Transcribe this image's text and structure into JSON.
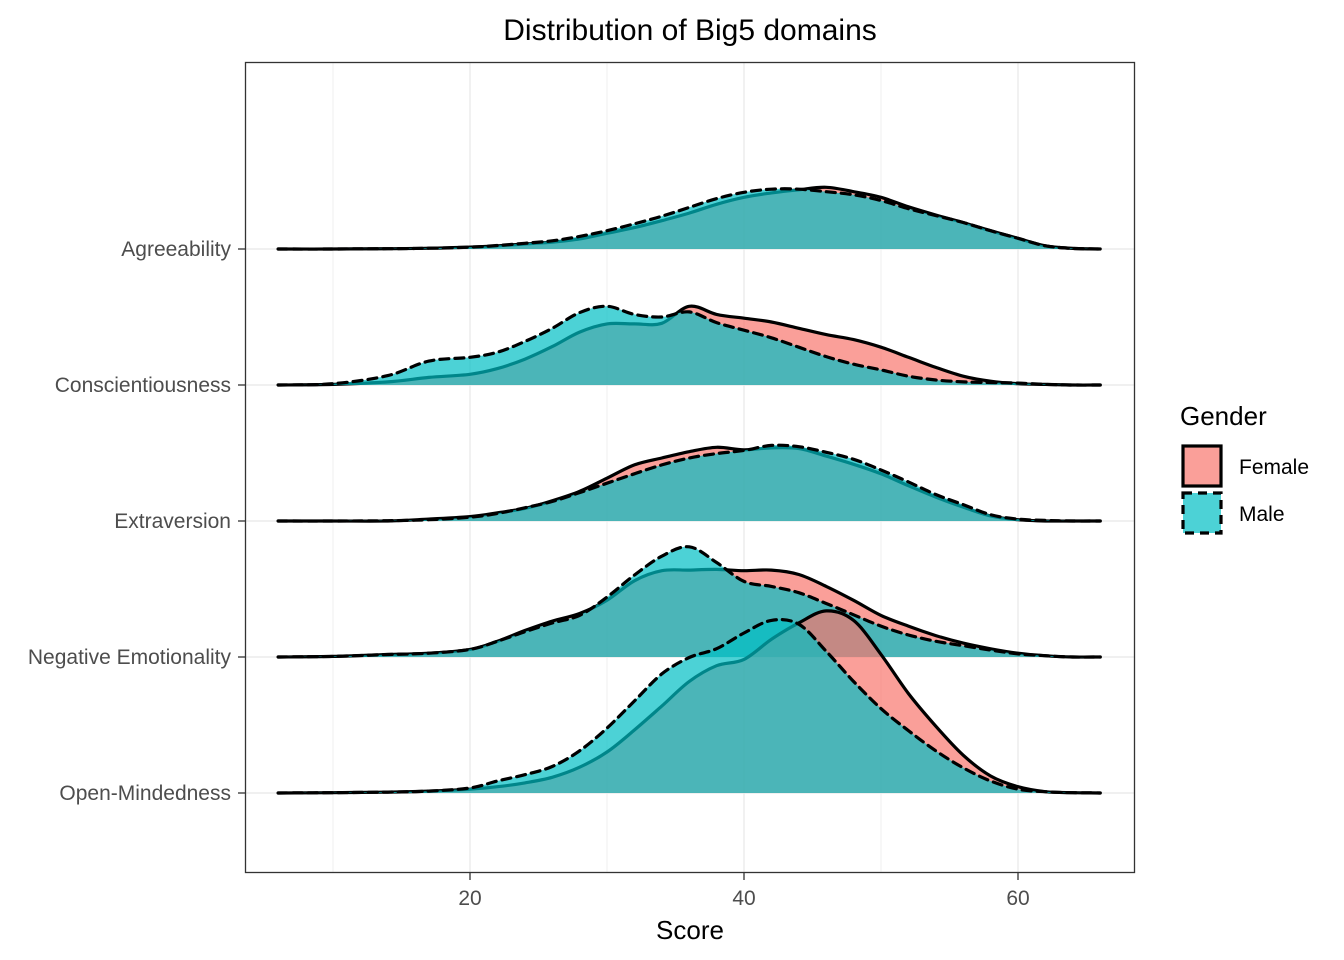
{
  "chart_data": {
    "type": "area",
    "subtype": "ridgeline-density",
    "title": "Distribution of Big5 domains",
    "xlabel": "Score",
    "ylabel": "",
    "xlim": [
      3,
      68
    ],
    "x_ticks": [
      20,
      40,
      60
    ],
    "grid": true,
    "categories": [
      "Agreeability",
      "Conscientiousness",
      "Extraversion",
      "Negative Emotionality",
      "Open-Mindedness"
    ],
    "legend": {
      "title": "Gender",
      "position": "right",
      "entries": [
        {
          "label": "Female",
          "fill": "#F8766D",
          "line": "solid"
        },
        {
          "label": "Male",
          "fill": "#00BFC4",
          "line": "dashed"
        }
      ]
    },
    "colors": {
      "Female": "#F8766D",
      "Male": "#00BFC4"
    },
    "x": [
      6,
      10,
      14,
      17,
      20,
      22,
      24,
      26,
      28,
      30,
      32,
      34,
      36,
      38,
      40,
      42,
      44,
      46,
      48,
      50,
      52,
      54,
      56,
      58,
      60,
      62,
      64,
      66
    ],
    "series": [
      {
        "category": "Agreeability",
        "name": "Female",
        "values": [
          0,
          0,
          0.005,
          0.012,
          0.03,
          0.05,
          0.08,
          0.11,
          0.16,
          0.25,
          0.34,
          0.45,
          0.57,
          0.71,
          0.82,
          0.89,
          0.94,
          0.98,
          0.91,
          0.82,
          0.67,
          0.54,
          0.42,
          0.29,
          0.17,
          0.05,
          0.01,
          0
        ]
      },
      {
        "category": "Agreeability",
        "name": "Male",
        "values": [
          0,
          0,
          0.005,
          0.012,
          0.03,
          0.055,
          0.09,
          0.13,
          0.2,
          0.29,
          0.4,
          0.52,
          0.66,
          0.8,
          0.9,
          0.95,
          0.95,
          0.91,
          0.86,
          0.77,
          0.64,
          0.53,
          0.42,
          0.29,
          0.17,
          0.05,
          0.01,
          0
        ]
      },
      {
        "category": "Conscientiousness",
        "name": "Female",
        "values": [
          0,
          0.01,
          0.05,
          0.12,
          0.17,
          0.26,
          0.41,
          0.61,
          0.84,
          0.97,
          0.97,
          0.98,
          1.25,
          1.12,
          1.06,
          1.0,
          0.9,
          0.8,
          0.72,
          0.6,
          0.44,
          0.28,
          0.14,
          0.06,
          0.02,
          0.01,
          0,
          0
        ]
      },
      {
        "category": "Conscientiousness",
        "name": "Male",
        "values": [
          0,
          0.02,
          0.15,
          0.38,
          0.44,
          0.52,
          0.69,
          0.9,
          1.15,
          1.25,
          1.12,
          1.08,
          1.16,
          0.99,
          0.87,
          0.75,
          0.6,
          0.45,
          0.33,
          0.24,
          0.14,
          0.08,
          0.05,
          0.04,
          0.03,
          0.01,
          0,
          0
        ]
      },
      {
        "category": "Extraversion",
        "name": "Female",
        "values": [
          0,
          0,
          0,
          0.03,
          0.07,
          0.13,
          0.2,
          0.32,
          0.47,
          0.68,
          0.89,
          1.0,
          1.1,
          1.17,
          1.13,
          1.16,
          1.15,
          1.03,
          0.9,
          0.75,
          0.56,
          0.38,
          0.22,
          0.08,
          0.02,
          0,
          0,
          0
        ]
      },
      {
        "category": "Extraversion",
        "name": "Male",
        "values": [
          0,
          0,
          0.005,
          0.02,
          0.06,
          0.12,
          0.21,
          0.31,
          0.45,
          0.6,
          0.75,
          0.89,
          1.0,
          1.07,
          1.12,
          1.2,
          1.18,
          1.09,
          0.98,
          0.81,
          0.62,
          0.42,
          0.26,
          0.1,
          0.03,
          0.01,
          0,
          0
        ]
      },
      {
        "category": "Negative Emotionality",
        "name": "Female",
        "values": [
          0,
          0.01,
          0.04,
          0.06,
          0.12,
          0.25,
          0.42,
          0.57,
          0.69,
          0.9,
          1.21,
          1.37,
          1.38,
          1.39,
          1.37,
          1.38,
          1.31,
          1.12,
          0.9,
          0.66,
          0.49,
          0.34,
          0.22,
          0.13,
          0.06,
          0.02,
          0,
          0
        ]
      },
      {
        "category": "Negative Emotionality",
        "name": "Male",
        "values": [
          0,
          0.01,
          0.04,
          0.06,
          0.12,
          0.25,
          0.4,
          0.54,
          0.66,
          0.95,
          1.3,
          1.6,
          1.75,
          1.5,
          1.2,
          1.12,
          1.02,
          0.85,
          0.67,
          0.49,
          0.35,
          0.25,
          0.18,
          0.11,
          0.05,
          0.02,
          0,
          0
        ]
      },
      {
        "category": "Open-Mindedness",
        "name": "Female",
        "values": [
          0,
          0.005,
          0.015,
          0.03,
          0.06,
          0.1,
          0.16,
          0.25,
          0.41,
          0.65,
          1.0,
          1.38,
          1.77,
          2.02,
          2.12,
          2.44,
          2.7,
          2.89,
          2.74,
          2.2,
          1.58,
          1.06,
          0.6,
          0.27,
          0.1,
          0.02,
          0.005,
          0
        ]
      },
      {
        "category": "Open-Mindedness",
        "name": "Male",
        "values": [
          0,
          0.005,
          0.015,
          0.03,
          0.08,
          0.19,
          0.29,
          0.42,
          0.67,
          1.03,
          1.46,
          1.89,
          2.15,
          2.29,
          2.54,
          2.74,
          2.68,
          2.25,
          1.77,
          1.34,
          0.99,
          0.67,
          0.4,
          0.19,
          0.06,
          0.02,
          0.005,
          0
        ]
      }
    ]
  }
}
